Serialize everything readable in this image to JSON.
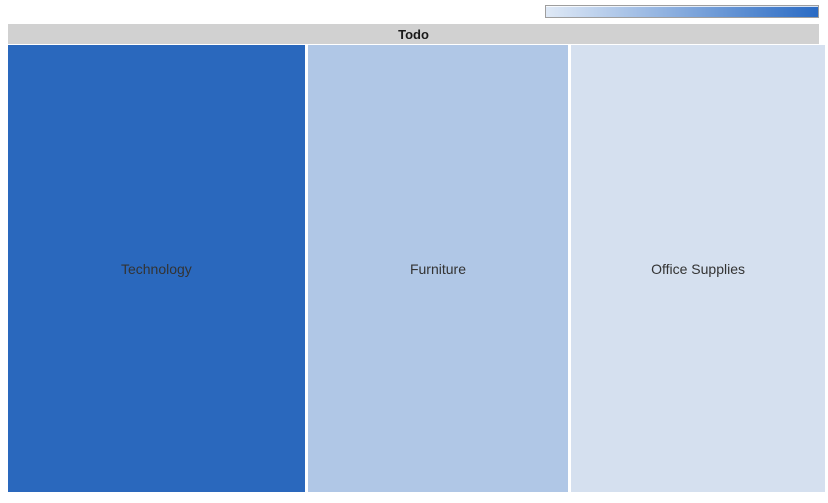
{
  "header": {
    "title": "Todo",
    "background": "#d1d1d1",
    "text_color": "#1a1a1a"
  },
  "legend": {
    "kind": "continuous-color-gradient",
    "position": "top-right",
    "from_color": "#dfe9f6",
    "to_color": "#2a6bc4",
    "border_color": "#9e9e9e"
  },
  "chart_data": {
    "type": "treemap",
    "title": "Todo",
    "label_color": "#333333",
    "legend_position": "top-right",
    "grid": "off",
    "nodes": [
      {
        "label": "Technology",
        "color": "#2a68bd",
        "width_pct": 36.6
      },
      {
        "label": "Furniture",
        "color": "#b0c7e6",
        "width_pct": 32.1
      },
      {
        "label": "Office Supplies",
        "color": "#d5e0ef",
        "width_pct": 31.3
      }
    ]
  }
}
